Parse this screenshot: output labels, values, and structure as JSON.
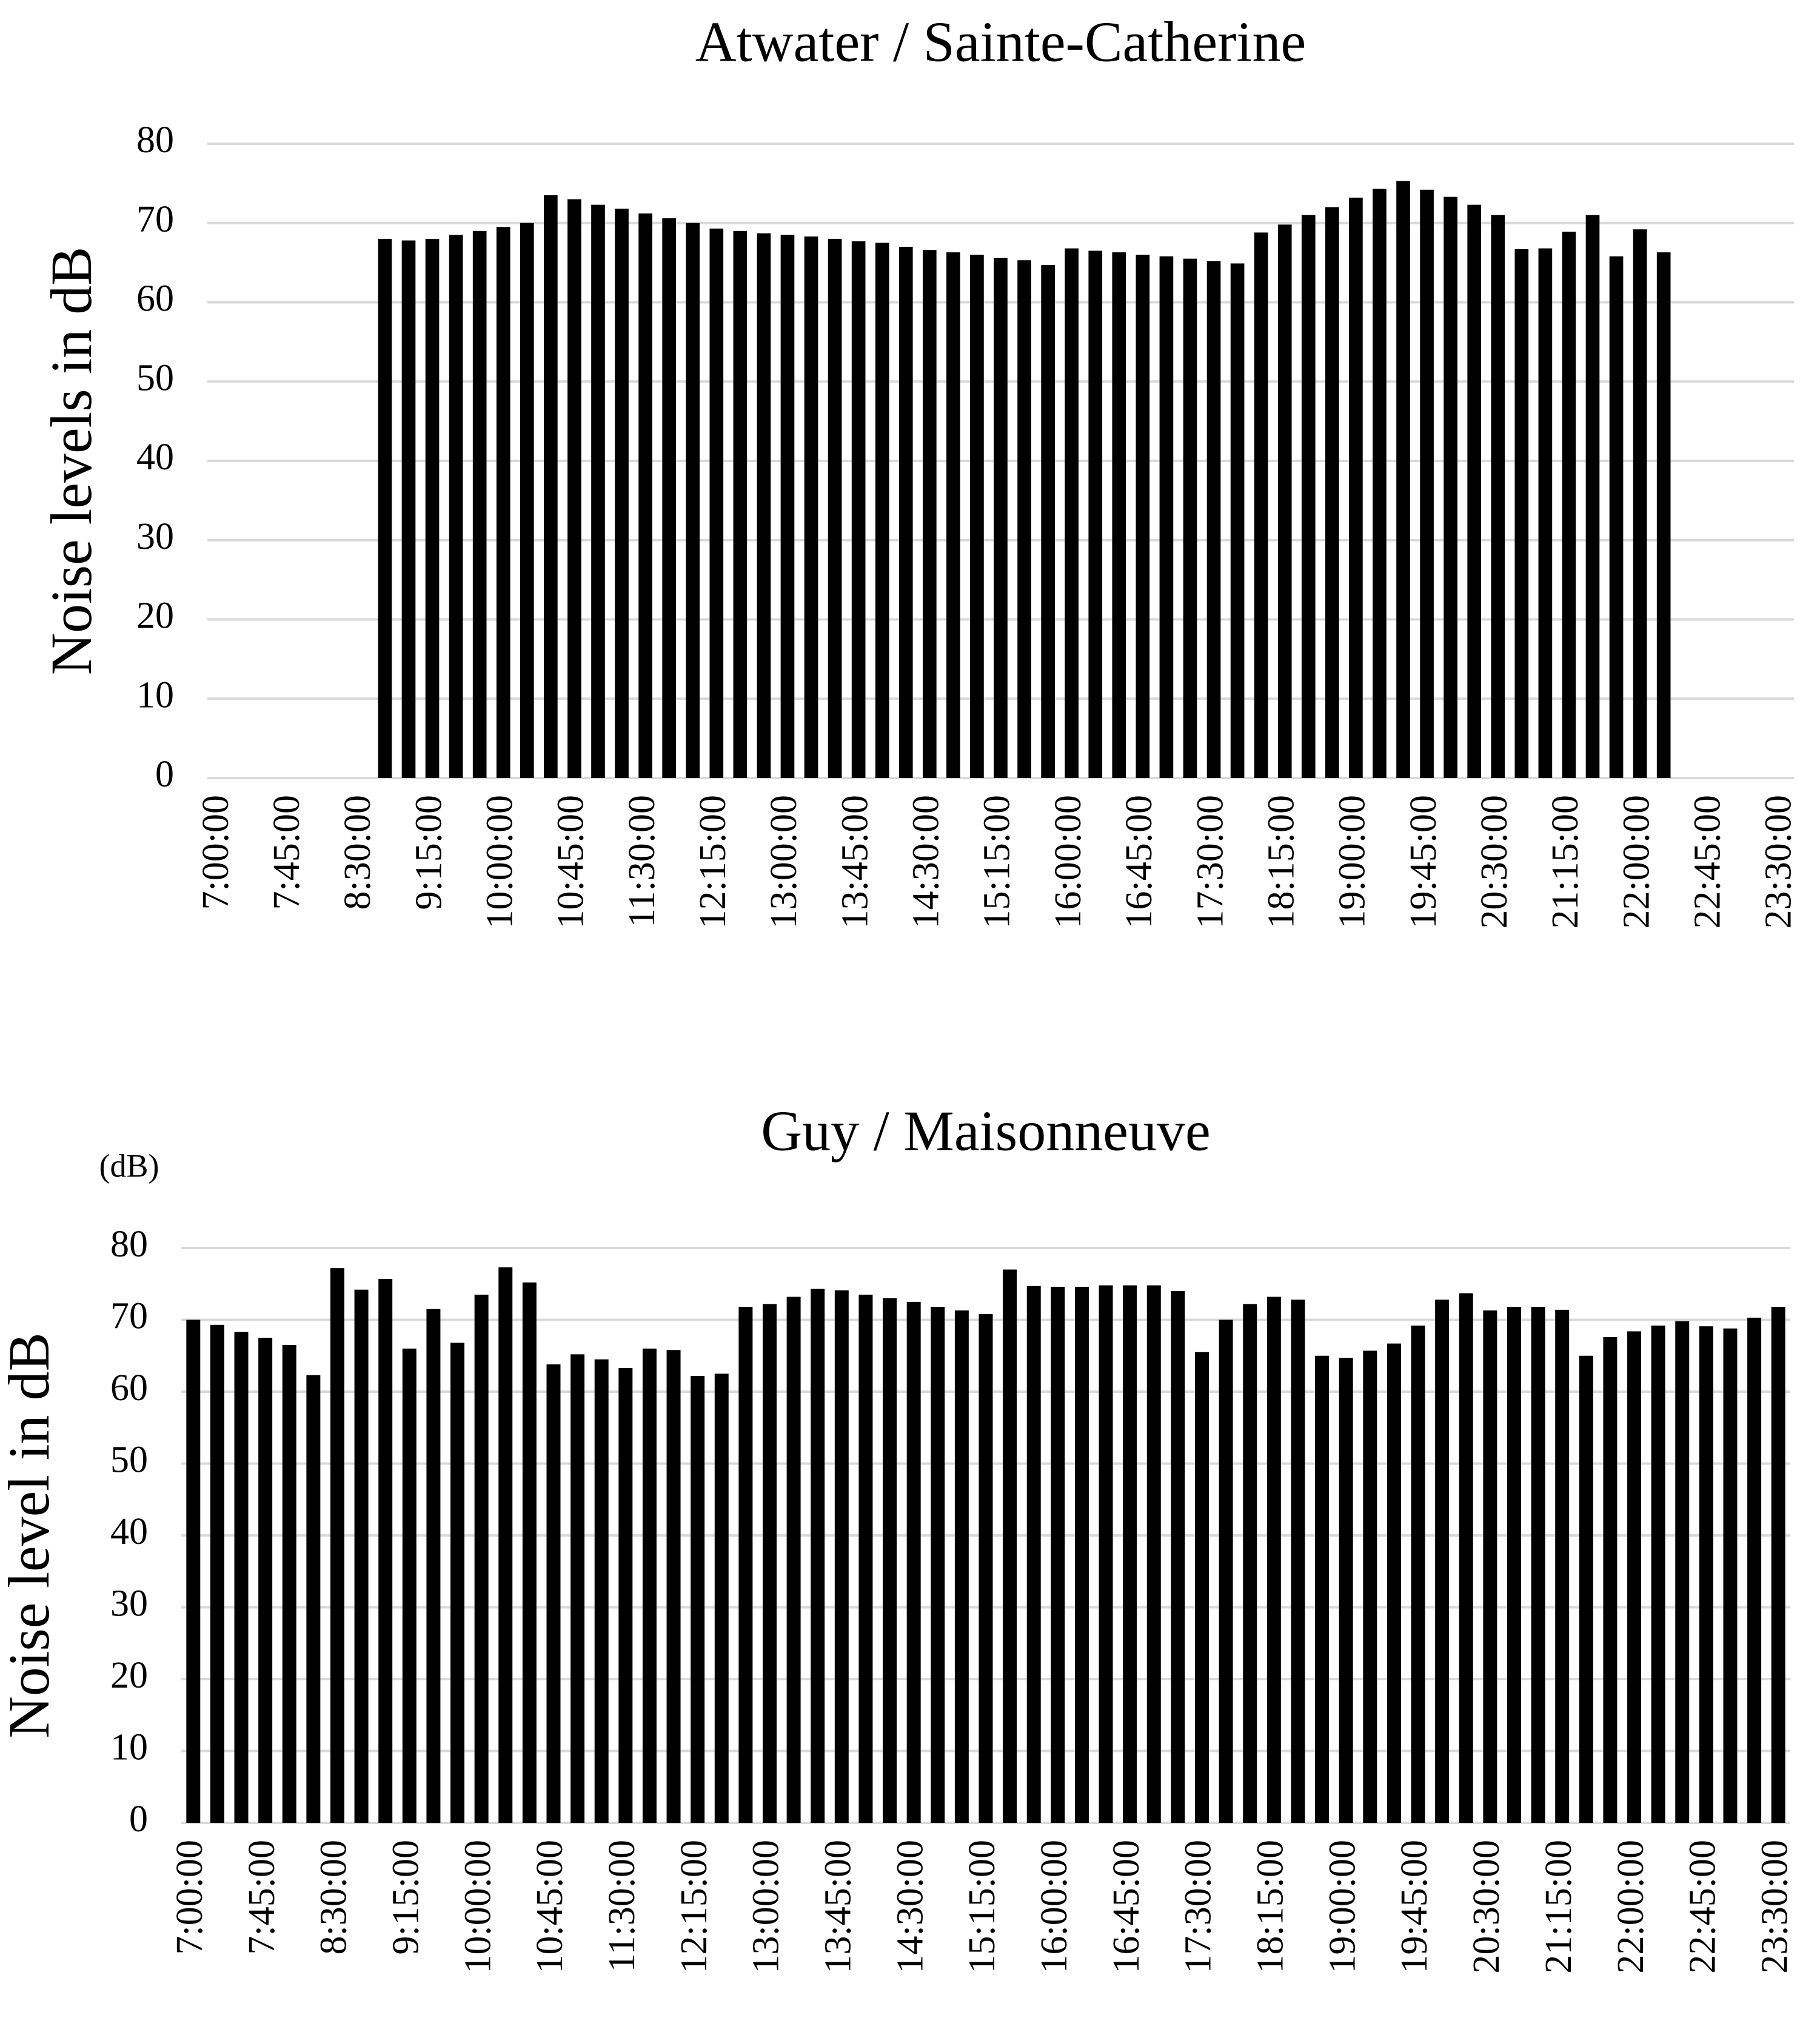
{
  "chart_data": [
    {
      "type": "bar",
      "title": "Atwater / Sainte-Catherine",
      "y_label": "Noise levels in dB",
      "categories": [
        "7:00:00",
        null,
        null,
        "7:45:00",
        null,
        null,
        "8:30:00",
        null,
        null,
        "9:15:00",
        null,
        null,
        "10:00:00",
        null,
        null,
        "10:45:00",
        null,
        null,
        "11:30:00",
        null,
        null,
        "12:15:00",
        null,
        null,
        "13:00:00",
        null,
        null,
        "13:45:00",
        null,
        null,
        "14:30:00",
        null,
        null,
        "15:15:00",
        null,
        null,
        "16:00:00",
        null,
        null,
        "16:45:00",
        null,
        null,
        "17:30:00",
        null,
        null,
        "18:15:00",
        null,
        null,
        "19:00:00",
        null,
        null,
        "19:45:00",
        null,
        null,
        "20:30:00",
        null,
        null,
        "21:15:00",
        null,
        null,
        "22:00:00",
        null,
        null,
        "22:45:00",
        null,
        null,
        "23:30:00"
      ],
      "values": [
        null,
        null,
        null,
        null,
        null,
        null,
        null,
        68,
        67.8,
        68,
        68.5,
        69,
        69.5,
        70,
        73.5,
        73,
        72.3,
        71.8,
        71.2,
        70.6,
        70,
        69.3,
        69,
        68.7,
        68.5,
        68.3,
        68,
        67.7,
        67.5,
        67,
        66.6,
        66.3,
        66,
        65.6,
        65.3,
        64.7,
        66.8,
        66.5,
        66.3,
        66,
        65.8,
        65.5,
        65.2,
        64.9,
        68.8,
        69.8,
        71,
        72,
        73.2,
        74.3,
        75.3,
        74.2,
        73.3,
        72.3,
        71,
        66.7,
        66.8,
        68.9,
        71,
        65.8,
        69.2,
        66.3,
        null,
        null,
        null,
        null,
        null
      ],
      "color": "#000000",
      "ylim": [
        0,
        80
      ],
      "yticks": [
        0,
        10,
        20,
        30,
        40,
        50,
        60,
        70,
        80
      ],
      "grid": true
    },
    {
      "type": "bar",
      "title": "Guy / Maisonneuve",
      "y_label": "Noise level in dB",
      "annotation": "(dB)",
      "categories": [
        "7:00:00",
        null,
        null,
        "7:45:00",
        null,
        null,
        "8:30:00",
        null,
        null,
        "9:15:00",
        null,
        null,
        "10:00:00",
        null,
        null,
        "10:45:00",
        null,
        null,
        "11:30:00",
        null,
        null,
        "12:15:00",
        null,
        null,
        "13:00:00",
        null,
        null,
        "13:45:00",
        null,
        null,
        "14:30:00",
        null,
        null,
        "15:15:00",
        null,
        null,
        "16:00:00",
        null,
        null,
        "16:45:00",
        null,
        null,
        "17:30:00",
        null,
        null,
        "18:15:00",
        null,
        null,
        "19:00:00",
        null,
        null,
        "19:45:00",
        null,
        null,
        "20:30:00",
        null,
        null,
        "21:15:00",
        null,
        null,
        "22:00:00",
        null,
        null,
        "22:45:00",
        null,
        null,
        "23:30:00"
      ],
      "values": [
        70,
        69.3,
        68.3,
        67.5,
        66.5,
        62.3,
        77.2,
        74.2,
        75.7,
        66,
        71.5,
        66.8,
        73.5,
        77.3,
        75.2,
        63.8,
        65.2,
        64.5,
        63.3,
        66,
        65.8,
        62.2,
        62.5,
        71.8,
        72.2,
        73.2,
        74.3,
        74.1,
        73.5,
        73,
        72.5,
        71.8,
        71.3,
        70.8,
        77,
        74.7,
        74.6,
        74.6,
        74.8,
        74.8,
        74.8,
        74,
        65.5,
        70,
        72.2,
        73.2,
        72.8,
        65,
        64.7,
        65.7,
        66.7,
        69.2,
        72.8,
        73.7,
        71.3,
        71.8,
        71.8,
        71.4,
        65,
        67.6,
        68.4,
        69.2,
        69.8,
        69.1,
        68.8,
        70.3,
        71.8
      ],
      "color": "#000000",
      "ylim": [
        0,
        80
      ],
      "yticks": [
        0,
        10,
        20,
        30,
        40,
        50,
        60,
        70,
        80
      ],
      "grid": true
    }
  ]
}
